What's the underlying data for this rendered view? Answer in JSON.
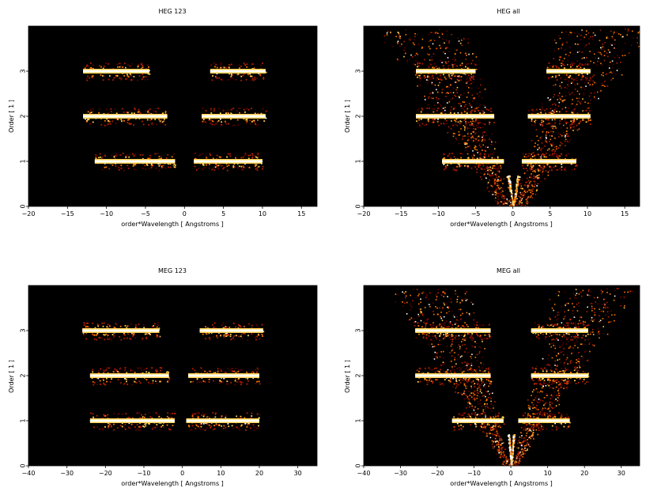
{
  "figure": {
    "panels": [
      {
        "title": "HEG 123",
        "xlabel": "order*Wavelength [ Angstroms ]",
        "ylabel": "Order [ 1 ]"
      },
      {
        "title": "HEG all",
        "xlabel": "order*Wavelength [ Angstroms ]",
        "ylabel": "Order [ 1 ]"
      },
      {
        "title": "MEG 123",
        "xlabel": "order*Wavelength [ Angstroms ]",
        "ylabel": "Order [ 1 ]"
      },
      {
        "title": "MEG all",
        "xlabel": "order*Wavelength [ Angstroms ]",
        "ylabel": "Order [ 1 ]"
      }
    ]
  },
  "chart_data": [
    {
      "type": "heatmap",
      "title": "HEG 123",
      "xlabel": "order*Wavelength [ Angstroms ]",
      "ylabel": "Order [ 1 ]",
      "xlim": [
        -20,
        17
      ],
      "ylim": [
        0,
        4
      ],
      "xticks": [
        -20,
        -15,
        -10,
        -5,
        0,
        5,
        10,
        15
      ],
      "yticks": [
        0,
        1,
        2,
        3
      ],
      "colormap": [
        "#000000",
        "#5a0000",
        "#b22000",
        "#ff7a00",
        "#ffd050",
        "#ffffff"
      ],
      "bands": [
        {
          "order": 1,
          "segments": [
            [
              -11.5,
              -1.2
            ],
            [
              1.2,
              10.0
            ]
          ]
        },
        {
          "order": 2,
          "segments": [
            [
              -13.0,
              -2.2
            ],
            [
              2.2,
              10.4
            ]
          ]
        },
        {
          "order": 3,
          "segments": [
            [
              -13.0,
              -4.5
            ],
            [
              3.3,
              10.4
            ]
          ]
        }
      ]
    },
    {
      "type": "heatmap",
      "title": "HEG all",
      "xlabel": "order*Wavelength [ Angstroms ]",
      "ylabel": "Order [ 1 ]",
      "xlim": [
        -20,
        17
      ],
      "ylim": [
        0,
        4
      ],
      "xticks": [
        -20,
        -15,
        -10,
        -5,
        0,
        5,
        10,
        15
      ],
      "yticks": [
        0,
        1,
        2,
        3
      ],
      "colormap": [
        "#000000",
        "#5a0000",
        "#b22000",
        "#ff7a00",
        "#ffd050",
        "#ffffff"
      ],
      "bands": [
        {
          "order": 1,
          "segments": [
            [
              -9.5,
              -1.2
            ],
            [
              1.2,
              8.5
            ]
          ]
        },
        {
          "order": 2,
          "segments": [
            [
              -13.0,
              -2.5
            ],
            [
              2.0,
              10.4
            ]
          ]
        },
        {
          "order": 3,
          "segments": [
            [
              -13.0,
              -5.0
            ],
            [
              4.5,
              10.4
            ]
          ]
        }
      ]
    },
    {
      "type": "heatmap",
      "title": "MEG 123",
      "xlabel": "order*Wavelength [ Angstroms ]",
      "ylabel": "Order [ 1 ]",
      "xlim": [
        -40,
        35
      ],
      "ylim": [
        0,
        4
      ],
      "xticks": [
        -40,
        -30,
        -20,
        -10,
        0,
        10,
        20,
        30
      ],
      "yticks": [
        0,
        1,
        2,
        3
      ],
      "colormap": [
        "#000000",
        "#5a0000",
        "#b22000",
        "#ff7a00",
        "#ffd050",
        "#ffffff"
      ],
      "bands": [
        {
          "order": 1,
          "segments": [
            [
              -24.0,
              -2.0
            ],
            [
              1.0,
              20.0
            ]
          ]
        },
        {
          "order": 2,
          "segments": [
            [
              -24.0,
              -3.5
            ],
            [
              1.5,
              20.0
            ]
          ]
        },
        {
          "order": 3,
          "segments": [
            [
              -26.0,
              -6.0
            ],
            [
              4.5,
              21.0
            ]
          ]
        }
      ]
    },
    {
      "type": "heatmap",
      "title": "MEG all",
      "xlabel": "order*Wavelength [ Angstroms ]",
      "ylabel": "Order [ 1 ]",
      "xlim": [
        -40,
        35
      ],
      "ylim": [
        0,
        4
      ],
      "xticks": [
        -40,
        -30,
        -20,
        -10,
        0,
        10,
        20,
        30
      ],
      "yticks": [
        0,
        1,
        2,
        3
      ],
      "colormap": [
        "#000000",
        "#5a0000",
        "#b22000",
        "#ff7a00",
        "#ffd050",
        "#ffffff"
      ],
      "bands": [
        {
          "order": 1,
          "segments": [
            [
              -16.0,
              -2.0
            ],
            [
              2.0,
              16.0
            ]
          ]
        },
        {
          "order": 2,
          "segments": [
            [
              -26.0,
              -5.5
            ],
            [
              5.5,
              21.0
            ]
          ]
        },
        {
          "order": 3,
          "segments": [
            [
              -26.0,
              -5.5
            ],
            [
              5.5,
              21.0
            ]
          ]
        }
      ]
    }
  ]
}
